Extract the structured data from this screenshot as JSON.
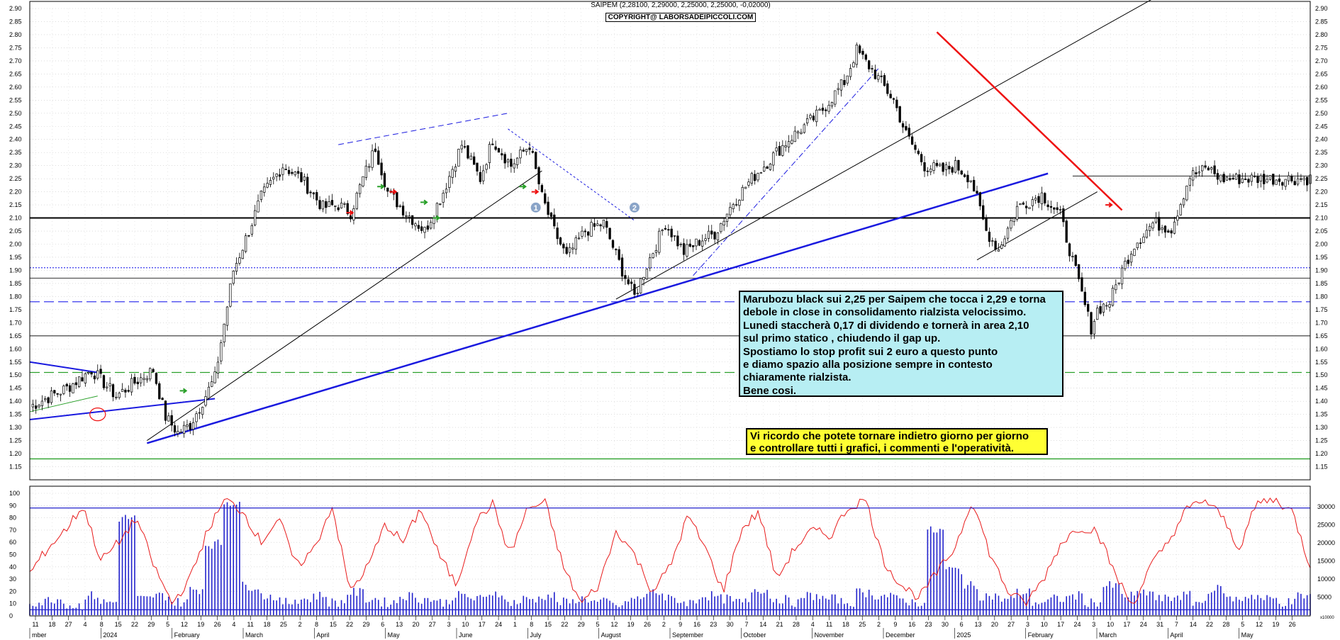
{
  "header": {
    "quote": "SAIPEM (2,28100, 2,29000, 2,25000, 2,25000, -0,02000)",
    "copyright": "COPYRIGHT@ LABORSADEIPICCOLI.COM"
  },
  "comment_box": {
    "lines": [
      "Marubozu black sui 2,25 per Saipem che tocca i 2,29 e torna",
      "debole in close in consolidamento rialzista velocissimo.",
      "Lunedi staccherà 0,17 di dividendo e tornerà in area 2,10",
      "sul primo statico , chiudendo il gap up.",
      "Spostiamo lo stop profit sui 2 euro a questo punto",
      "e diamo spazio alla posizione sempre in contesto",
      "chiaramente rialzista.",
      "Bene cosi."
    ]
  },
  "note_box": {
    "lines": [
      "Vi ricordo che potete tornare indietro giorno per giorno",
      "e controllare tutti i grafici, i commenti e l'operatività."
    ]
  },
  "colors": {
    "candle": "#000000",
    "trend_red": "#ee1111",
    "trend_blue": "#1a1adf",
    "dashed_blue": "#3a3aee",
    "green_line": "#2aa02a",
    "oscillator": "#e81a1a",
    "volume": "#2222cc",
    "grid": "#c8c8c8",
    "marker": "#8aa4c8"
  },
  "chart_data": [
    {
      "type": "candlestick",
      "title": "SAIPEM",
      "ylim": [
        1.1,
        2.9
      ],
      "y_ticks": [
        "1.15",
        "1.20",
        "1.25",
        "1.30",
        "1.35",
        "1.40",
        "1.45",
        "1.50",
        "1.55",
        "1.60",
        "1.65",
        "1.70",
        "1.75",
        "1.80",
        "1.85",
        "1.90",
        "1.95",
        "2.00",
        "2.05",
        "2.10",
        "2.15",
        "2.20",
        "2.25",
        "2.30",
        "2.35",
        "2.40",
        "2.45",
        "2.50",
        "2.55",
        "2.60",
        "2.65",
        "2.70",
        "2.75",
        "2.80",
        "2.85",
        "2.90"
      ],
      "price_path": {
        "index": [
          0,
          12,
          20,
          28,
          35,
          40,
          44,
          48,
          52,
          56,
          60,
          66,
          71,
          75,
          82,
          88,
          95,
          100,
          104,
          108,
          112,
          116,
          122,
          128,
          134,
          140,
          146,
          150,
          156,
          162,
          166,
          170,
          174,
          180,
          186,
          192,
          196,
          200,
          206,
          212,
          218,
          222,
          228,
          234,
          238,
          246,
          256,
          264,
          268,
          274,
          280,
          284,
          290,
          296,
          300,
          305,
          310,
          314,
          320,
          328,
          334,
          340,
          344,
          346,
          350,
          354,
          358,
          364,
          370,
          376,
          378,
          382,
          386,
          392,
          398,
          404,
          410,
          415
        ],
        "close": [
          1.38,
          1.45,
          1.52,
          1.42,
          1.48,
          1.52,
          1.34,
          1.28,
          1.31,
          1.4,
          1.49,
          1.9,
          2.05,
          2.18,
          2.3,
          2.25,
          2.14,
          2.15,
          2.12,
          2.25,
          2.37,
          2.2,
          2.12,
          2.05,
          2.2,
          2.38,
          2.25,
          2.4,
          2.3,
          2.38,
          2.18,
          2.05,
          1.95,
          2.05,
          2.08,
          1.9,
          1.8,
          1.92,
          2.08,
          1.97,
          2.02,
          2.04,
          2.16,
          2.25,
          2.3,
          2.4,
          2.5,
          2.62,
          2.74,
          2.65,
          2.55,
          2.42,
          2.3,
          2.28,
          2.3,
          2.25,
          2.05,
          1.98,
          2.14,
          2.19,
          2.11,
          1.85,
          1.68,
          1.75,
          1.78,
          1.9,
          2.0,
          2.08,
          2.06,
          2.26,
          2.27,
          2.29,
          2.25,
          2.25,
          2.25,
          2.25,
          2.25,
          2.25
        ]
      },
      "horizontal_levels": [
        {
          "y": 2.1,
          "style": "solid",
          "color": "black"
        },
        {
          "y": 1.91,
          "style": "dotted",
          "color": "blue"
        },
        {
          "y": 1.87,
          "style": "solid",
          "color": "gray"
        },
        {
          "y": 1.78,
          "style": "dashed",
          "color": "blue"
        },
        {
          "y": 1.65,
          "style": "solid",
          "color": "gray"
        },
        {
          "y": 1.51,
          "style": "dashed",
          "color": "green"
        },
        {
          "y": 1.18,
          "style": "solid",
          "color": "green"
        },
        {
          "y": 2.26,
          "style": "solid",
          "color": "gray",
          "from_index": 338
        }
      ],
      "trendlines": [
        {
          "from": [
            0,
            1.33
          ],
          "to": [
            60,
            1.41
          ],
          "color": "blue",
          "width": 2
        },
        {
          "from": [
            0,
            1.55
          ],
          "to": [
            22,
            1.51
          ],
          "color": "blue",
          "width": 2
        },
        {
          "from": [
            0,
            1.36
          ],
          "to": [
            22,
            1.42
          ],
          "color": "green",
          "width": 1
        },
        {
          "from": [
            38,
            1.25
          ],
          "to": [
            166,
            2.28
          ],
          "color": "black",
          "width": 1
        },
        {
          "from": [
            38,
            1.24
          ],
          "to": [
            330,
            2.27
          ],
          "color": "blue",
          "width": 2.5
        },
        {
          "from": [
            190,
            1.79
          ],
          "to": [
            372,
            2.99
          ],
          "color": "black",
          "width": 1
        },
        {
          "from": [
            294,
            2.81
          ],
          "to": [
            354,
            2.13
          ],
          "color": "red",
          "width": 2.5
        },
        {
          "from": [
            307,
            1.94
          ],
          "to": [
            346,
            2.2
          ],
          "color": "black",
          "width": 1
        },
        {
          "from": [
            100,
            2.38
          ],
          "to": [
            155,
            2.5
          ],
          "color": "blue",
          "width": 1,
          "style": "dashed"
        },
        {
          "from": [
            155,
            2.44
          ],
          "to": [
            196,
            2.09
          ],
          "color": "blue",
          "width": 1,
          "style": "dotted"
        },
        {
          "from": [
            215,
            1.88
          ],
          "to": [
            275,
            2.67
          ],
          "color": "blue",
          "width": 1,
          "style": "dashdot"
        }
      ],
      "markers": [
        {
          "label": "1",
          "index": 164,
          "y": 2.14
        },
        {
          "label": "2",
          "index": 196,
          "y": 2.14
        }
      ]
    },
    {
      "type": "line",
      "series": [
        {
          "values": [
            35,
            55,
            70,
            90,
            45,
            60,
            80,
            40,
            10,
            30,
            70,
            95,
            85,
            60,
            80,
            40,
            55,
            90,
            20,
            40,
            75,
            60,
            88,
            50,
            25,
            75,
            92,
            50,
            88,
            92,
            40,
            10,
            25,
            70,
            50,
            20,
            40,
            82,
            55,
            20,
            70,
            85,
            30,
            55,
            70,
            65,
            88,
            95,
            45,
            25,
            15,
            35,
            55,
            95,
            50,
            20,
            10,
            30,
            60,
            72,
            70,
            35,
            8,
            40,
            60,
            86,
            95,
            82,
            55,
            92,
            95,
            85,
            40
          ]
        }
      ],
      "ylim": [
        0,
        100
      ],
      "y_ticks": [
        "0",
        "10",
        "20",
        "30",
        "40",
        "50",
        "60",
        "70",
        "80",
        "90",
        "100"
      ],
      "levels": [
        88,
        5
      ]
    },
    {
      "type": "bar",
      "series": [
        {
          "values": [
            4,
            5,
            3,
            6,
            4,
            30,
            5,
            6,
            4,
            8,
            22,
            35,
            9,
            6,
            4,
            5,
            6,
            4,
            7,
            5,
            4,
            6,
            5,
            4,
            6,
            5,
            7,
            4,
            5,
            6,
            4,
            5,
            4,
            3,
            5,
            7,
            5,
            4,
            6,
            5,
            4,
            8,
            5,
            4,
            6,
            5,
            4,
            7,
            6,
            5,
            4,
            26,
            14,
            9,
            6,
            5,
            7,
            4,
            5,
            6,
            4,
            9,
            6,
            7,
            5,
            6,
            4,
            8,
            5,
            6,
            5,
            4,
            6
          ]
        }
      ],
      "y_ticks": [
        "5000",
        "10000",
        "15000",
        "20000",
        "25000",
        "30000"
      ]
    }
  ],
  "x_axis": {
    "day_ticks": [
      "11",
      "18",
      "27",
      "4",
      "8",
      "15",
      "22",
      "29",
      "5",
      "12",
      "19",
      "26",
      "4",
      "11",
      "18",
      "25",
      "2",
      "8",
      "15",
      "22",
      "29",
      "6",
      "13",
      "20",
      "27",
      "3",
      "10",
      "17",
      "24",
      "1",
      "8",
      "15",
      "22",
      "29",
      "5",
      "12",
      "19",
      "26",
      "2",
      "9",
      "16",
      "23",
      "30",
      "7",
      "14",
      "21",
      "28",
      "4",
      "11",
      "18",
      "25",
      "2",
      "9",
      "16",
      "23",
      "30",
      "6",
      "13",
      "20",
      "27",
      "3",
      "10",
      "17",
      "24",
      "3",
      "10",
      "17",
      "24",
      "31",
      "7",
      "14",
      "22",
      "28",
      "5",
      "12",
      "19",
      "26"
    ],
    "month_labels": [
      "mber",
      "2024",
      "February",
      "March",
      "April",
      "May",
      "June",
      "July",
      "August",
      "September",
      "October",
      "November",
      "December",
      "2025",
      "February",
      "March",
      "April",
      "May"
    ],
    "corner_label": "x10000"
  }
}
